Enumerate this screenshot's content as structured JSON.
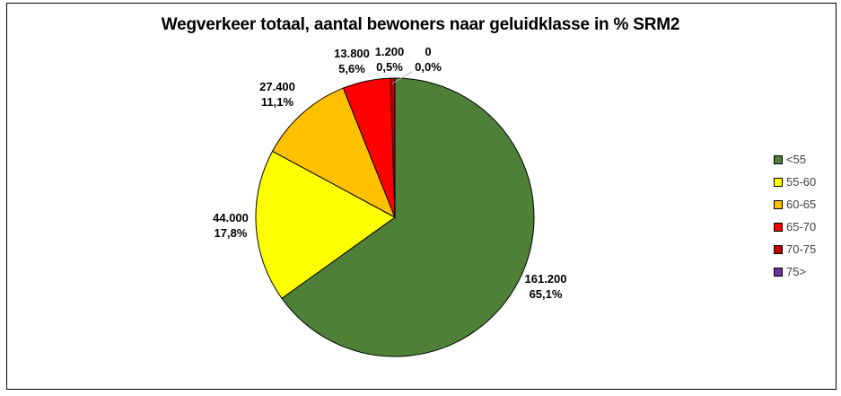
{
  "window": {
    "background": "#FFFFFF",
    "border_color": "#000000"
  },
  "chart_data": {
    "type": "pie",
    "title": "Wegverkeer totaal, aantal bewoners naar geluidklasse in % SRM2",
    "categories": [
      "<55",
      "55-60",
      "60-65",
      "65-70",
      "70-75",
      "75>"
    ],
    "values": [
      161200,
      44000,
      27400,
      13800,
      1200,
      0
    ],
    "percentages": [
      65.1,
      17.8,
      11.1,
      5.6,
      0.5,
      0.0
    ],
    "colors": [
      "#4F8038",
      "#FFFF00",
      "#FFC000",
      "#FF0000",
      "#C00000",
      "#7030A0"
    ],
    "slice_labels": [
      {
        "value": "161.200",
        "pct": "65,1%"
      },
      {
        "value": "44.000",
        "pct": "17,8%"
      },
      {
        "value": "27.400",
        "pct": "11,1%"
      },
      {
        "value": "13.800",
        "pct": "5,6%"
      },
      {
        "value": "1.200",
        "pct": "0,5%"
      },
      {
        "value": "0",
        "pct": "0,0%"
      }
    ],
    "legend": {
      "position": "right",
      "entries": [
        "<55",
        "55-60",
        "60-65",
        "65-70",
        "70-75",
        "75>"
      ]
    },
    "start_angle_deg": 0,
    "direction": "clockwise",
    "stroke_color": "#000000",
    "leader_line_color": "#A6A6A6"
  }
}
